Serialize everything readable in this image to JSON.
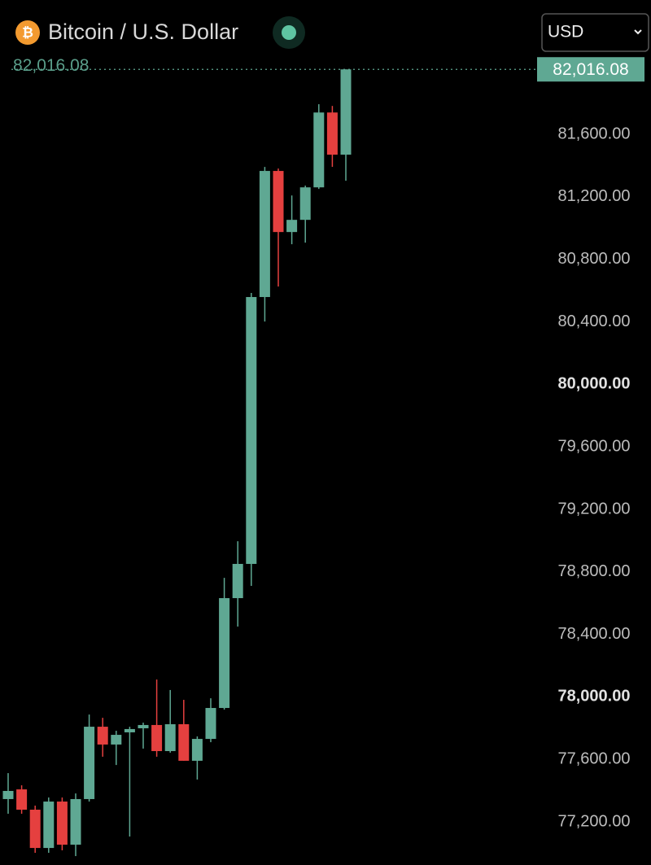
{
  "chart_data": {
    "type": "candlestick",
    "title": "Bitcoin / U.S. Dollar",
    "icon_symbol": "₿",
    "currency": "USD",
    "up_color": "#5fa893",
    "down_color": "#e5403f",
    "open": [
      77346,
      77408,
      77278,
      77033,
      77330,
      77054,
      77346,
      77809,
      77695,
      77773,
      77799,
      77820,
      77653,
      77825,
      77591,
      77731,
      77929,
      78632,
      78851,
      80559,
      81366,
      80975,
      81053,
      81261,
      81740,
      81470
    ],
    "high": [
      77512,
      77434,
      77304,
      77356,
      77356,
      77382,
      77887,
      77866,
      77783,
      77809,
      77835,
      78111,
      78044,
      77981,
      77747,
      77991,
      78762,
      78996,
      80585,
      81392,
      81381,
      81209,
      81272,
      81793,
      81782,
      82016.08
    ],
    "low": [
      77252,
      77252,
      77002,
      77002,
      77018,
      76981,
      77330,
      77617,
      77564,
      77106,
      77669,
      77617,
      77643,
      77591,
      77471,
      77710,
      77919,
      78450,
      78710,
      80402,
      80626,
      80897,
      80907,
      81251,
      81392,
      81303
    ],
    "close": [
      77398,
      77278,
      77033,
      77330,
      77054,
      77346,
      77809,
      77695,
      77757,
      77794,
      77820,
      77653,
      77825,
      77591,
      77731,
      77929,
      78632,
      78851,
      80559,
      81366,
      80975,
      81053,
      81261,
      81740,
      81470,
      82016.08
    ],
    "last_price": {
      "value": 82016.08,
      "label": "82,016.08"
    },
    "ylim": [
      76924,
      82460
    ],
    "yticks": [
      {
        "value": 77200,
        "label": "77,200.00"
      },
      {
        "value": 77600,
        "label": "77,600.00"
      },
      {
        "value": 78000,
        "label": "78,000.00"
      },
      {
        "value": 78400,
        "label": "78,400.00"
      },
      {
        "value": 78800,
        "label": "78,800.00"
      },
      {
        "value": 79200,
        "label": "79,200.00"
      },
      {
        "value": 79600,
        "label": "79,600.00"
      },
      {
        "value": 80000,
        "label": "80,000.00"
      },
      {
        "value": 80400,
        "label": "80,400.00"
      },
      {
        "value": 80800,
        "label": "80,800.00"
      },
      {
        "value": 81200,
        "label": "81,200.00"
      },
      {
        "value": 81600,
        "label": "81,600.00"
      }
    ]
  }
}
